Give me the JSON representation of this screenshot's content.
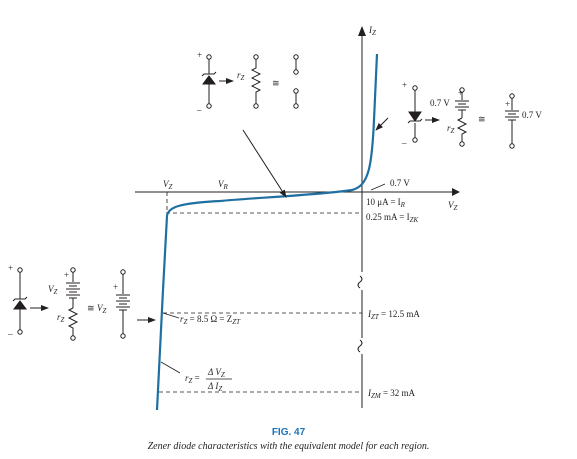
{
  "axes": {
    "x_label": "V",
    "x_sub": "Z",
    "y_label": "I",
    "y_sub": "Z"
  },
  "curve_color": "#1f6fa1",
  "labels": {
    "vz_top": "V",
    "vz_top_sub": "Z",
    "vr_top": "V",
    "vr_top_sub": "R",
    "knee_voltage": "0.7 V",
    "reverse_current": "10 μA = I",
    "reverse_current_sub": "R",
    "izk": "0.25 mA = I",
    "izk_sub": "ZK",
    "izt": "I",
    "izt_sub": "ZT",
    "izt_value": " = 12.5 mA",
    "izm": "I",
    "izm_sub": "ZM",
    "izm_value": " = 32 mA",
    "rz_ohm_r": "r",
    "rz_ohm_sub": "Z",
    "rz_ohm_value": " = 8.5 Ω = Z",
    "rz_ohm_sub2": "ZT",
    "rz_formula_r": "r",
    "rz_formula_sub": "Z",
    "rz_formula_eq": " =",
    "rz_formula_num": "Δ V",
    "rz_formula_num_sub": "Z",
    "rz_formula_den": "Δ I",
    "rz_formula_den_sub": "Z"
  },
  "models": {
    "top": {
      "rz": "r",
      "rz_sub": "Z",
      "approx": "≅"
    },
    "forward": {
      "v1": "0.7 V",
      "v2": "0.7 V",
      "rz": "r",
      "rz_sub": "Z",
      "approx": "≅",
      "plus": "+"
    },
    "left": {
      "vz": "V",
      "vz_sub": "Z",
      "vz2": "V",
      "vz2_sub": "Z",
      "rz": "r",
      "rz_sub": "Z",
      "approx": "≅",
      "plus": "+"
    }
  },
  "figure": {
    "number": "FIG. 47",
    "caption": "Zener diode characteristics with the equivalent model for each region."
  }
}
